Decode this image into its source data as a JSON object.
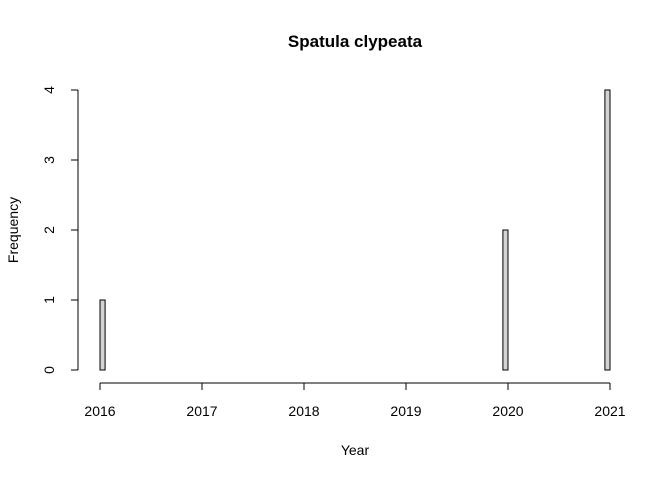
{
  "chart_data": {
    "type": "bar",
    "title": "Spatula clypeata",
    "xlabel": "Year",
    "ylabel": "Frequency",
    "x_ticks": [
      "2016",
      "2017",
      "2018",
      "2019",
      "2020",
      "2021"
    ],
    "y_ticks": [
      "0",
      "1",
      "2",
      "3",
      "4"
    ],
    "xlim": [
      2016,
      2021
    ],
    "ylim": [
      0,
      4
    ],
    "bin_width": 0.05,
    "bins": [
      {
        "start": 2016.0,
        "count": 1
      },
      {
        "start": 2019.95,
        "count": 2
      },
      {
        "start": 2020.95,
        "count": 4
      }
    ],
    "bar_fill": "#d3d3d3",
    "bar_stroke": "#000000",
    "grid": false,
    "legend": "none"
  }
}
